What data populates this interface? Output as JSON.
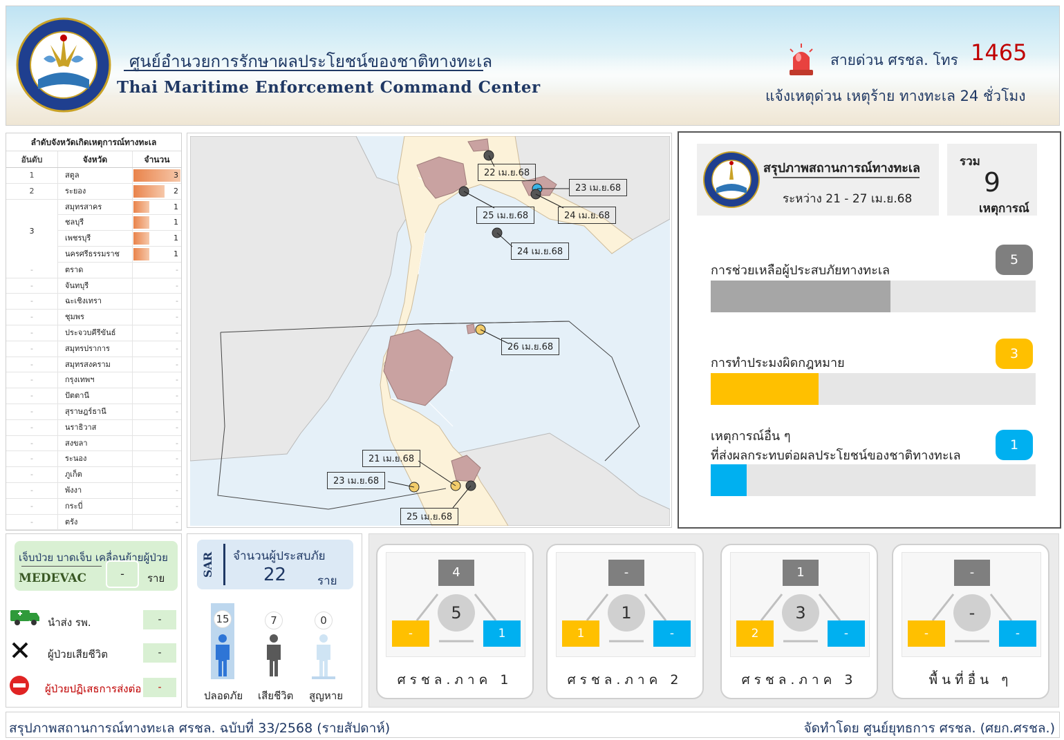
{
  "header": {
    "title_th": "ศูนย์อำนวยการรักษาผลประโยชน์ของชาติทางทะเล",
    "title_en": "Thai Maritime Enforcement Command Center",
    "hotline_label": "สายด่วน ศรชล. โทร",
    "hotline_number": "1465",
    "hotline_sub": "แจ้งเหตุด่วน เหตุร้าย ทางทะเล 24 ชั่วโมง"
  },
  "ranking": {
    "title": "ลำดับจังหวัดเกิดเหตุการณ์ทางทะเล",
    "headers": [
      "อันดับ",
      "จังหวัด",
      "จำนวน"
    ],
    "rows": [
      {
        "rank": "1",
        "province": "สตูล",
        "count": 3
      },
      {
        "rank": "2",
        "province": "ระยอง",
        "count": 2
      },
      {
        "rank": "",
        "province": "สมุทรสาคร",
        "count": 1
      },
      {
        "rank": "3",
        "province": "ชลบุรี",
        "count": 1
      },
      {
        "rank": "",
        "province": "เพชรบุรี",
        "count": 1
      },
      {
        "rank": "",
        "province": "นครศรีธรรมราช",
        "count": 1
      },
      {
        "rank": "-",
        "province": "ตราด",
        "count": "-"
      },
      {
        "rank": "-",
        "province": "จันทบุรี",
        "count": "-"
      },
      {
        "rank": "-",
        "province": "ฉะเชิงเทรา",
        "count": "-"
      },
      {
        "rank": "-",
        "province": "ชุมพร",
        "count": "-"
      },
      {
        "rank": "-",
        "province": "ประจวบคีรีขันธ์",
        "count": "-"
      },
      {
        "rank": "-",
        "province": "สมุทรปราการ",
        "count": "-"
      },
      {
        "rank": "-",
        "province": "สมุทรสงคราม",
        "count": "-"
      },
      {
        "rank": "-",
        "province": "กรุงเทพฯ",
        "count": "-"
      },
      {
        "rank": "-",
        "province": "ปัตตานี",
        "count": "-"
      },
      {
        "rank": "-",
        "province": "สุราษฎร์ธานี",
        "count": "-"
      },
      {
        "rank": "-",
        "province": "นราธิวาส",
        "count": "-"
      },
      {
        "rank": "-",
        "province": "สงขลา",
        "count": "-"
      },
      {
        "rank": "-",
        "province": "ระนอง",
        "count": "-"
      },
      {
        "rank": "-",
        "province": "ภูเก็ต",
        "count": "-"
      },
      {
        "rank": "-",
        "province": "พังงา",
        "count": "-"
      },
      {
        "rank": "-",
        "province": "กระบี่",
        "count": "-"
      },
      {
        "rank": "-",
        "province": "ตรัง",
        "count": "-"
      }
    ],
    "max_count": 3
  },
  "map_labels": [
    {
      "text": "22 เม.ย.68",
      "color": "#ffffff"
    },
    {
      "text": "23 เม.ย.68",
      "color": "#d6eef8"
    },
    {
      "text": "25 เม.ย.68",
      "color": "#ffffff"
    },
    {
      "text": "24 เม.ย.68",
      "color": "#ffffff"
    },
    {
      "text": "24 เม.ย.68",
      "color": "#ffffff"
    },
    {
      "text": "26 เม.ย.68",
      "color": "#f5eac5"
    },
    {
      "text": "21 เม.ย.68",
      "color": "#f5eac5"
    },
    {
      "text": "23 เม.ย.68",
      "color": "#f5eac5"
    },
    {
      "text": "25 เม.ย.68",
      "color": "#ffffff"
    }
  ],
  "summary": {
    "title": "สรุปภาพสถานการณ์ทางทะเล",
    "period": "ระหว่าง 21 - 27 เม.ย.68",
    "total_label": "รวม",
    "total": "9",
    "total_unit": "เหตุการณ์",
    "categories": [
      {
        "label": "การช่วยเหลือผู้ประสบภัยทางทะเล",
        "value": 5,
        "color": "#7f7f7f",
        "fill": "#a6a6a6",
        "share": 0.5
      },
      {
        "label": "การทำประมงผิดกฎหมาย",
        "value": 3,
        "color": "#ffc000",
        "fill": "#ffc000",
        "share": 0.3
      },
      {
        "label_line1": "เหตุการณ์อื่น ๆ",
        "label_line2": "ที่ส่งผลกระทบต่อผลประโยชน์ของชาติทางทะเล",
        "value": 1,
        "color": "#00b0f0",
        "fill": "#00b0f0",
        "share": 0.1
      }
    ]
  },
  "medevac": {
    "title": "เจ็บป่วย บาดเจ็บ เคลื่อนย้ายผู้ป่วย",
    "code": "MEDEVAC",
    "value": "-",
    "unit": "ราย",
    "items": [
      {
        "label": "นำส่ง รพ.",
        "value": "-"
      },
      {
        "label": "ผู้ป่วยเสียชีวิต",
        "value": "-"
      },
      {
        "label": "ผู้ป่วยปฏิเสธการส่งต่อ",
        "value": "-"
      }
    ]
  },
  "sar": {
    "tag": "SAR",
    "title": "จำนวนผู้ประสบภัย",
    "total": "22",
    "unit": "ราย",
    "safe": {
      "label": "ปลอดภัย",
      "value": "15"
    },
    "dead": {
      "label": "เสียชีวิต",
      "value": "7"
    },
    "missing": {
      "label": "สูญหาย",
      "value": "0"
    }
  },
  "regions": [
    {
      "name": "ศรชล.ภาค 1",
      "top": "4",
      "total": "5",
      "left": "-",
      "right": "1"
    },
    {
      "name": "ศรชล.ภาค 2",
      "top": "-",
      "total": "1",
      "left": "1",
      "right": "-"
    },
    {
      "name": "ศรชล.ภาค 3",
      "top": "1",
      "total": "3",
      "left": "2",
      "right": "-"
    },
    {
      "name": "พื้นที่อื่น ๆ",
      "top": "-",
      "total": "-",
      "left": "-",
      "right": "-"
    }
  ],
  "footer": {
    "left": "สรุปภาพสถานการณ์ทางทะเล ศรชล. ฉบับที่ 33/2568 (รายสัปดาห์)",
    "right": "จัดทำโดย ศูนย์ยุทธการ ศรชล. (ศยก.ศรชล.)"
  }
}
